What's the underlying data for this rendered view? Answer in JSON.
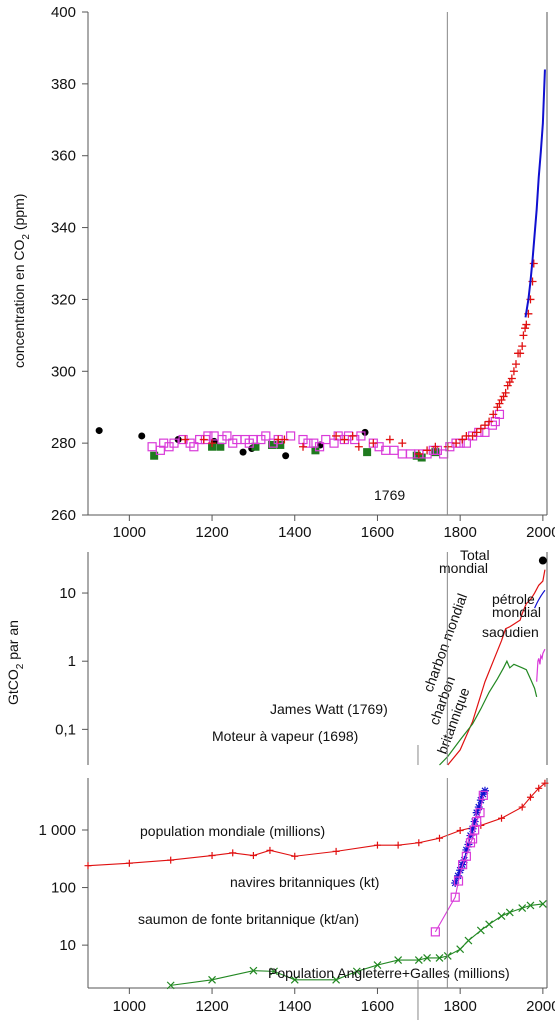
{
  "chart_data": [
    {
      "type": "scatter",
      "title": "",
      "xlabel": "",
      "ylabel": "concentration en CO2 (ppm)",
      "ylabel_main": "concentration en CO",
      "ylabel_sub": "2",
      "ylabel_unit": " (ppm)",
      "xlim": [
        900,
        2010
      ],
      "ylim": [
        260,
        400
      ],
      "x_ticks": [
        1000,
        1200,
        1400,
        1600,
        1800,
        2000
      ],
      "y_ticks": [
        260,
        280,
        300,
        320,
        340,
        360,
        380,
        400
      ],
      "x_tick_labels": [
        "1000",
        "1200",
        "1400",
        "1600",
        "1800",
        "2000"
      ],
      "y_tick_labels": [
        "260",
        "280",
        "300",
        "320",
        "340",
        "360",
        "380",
        "400"
      ],
      "annotation": {
        "x": 1769,
        "label": "1769"
      },
      "colors": {
        "magenta_squares": "#d93bd9",
        "green_squares": "#1e7a1e",
        "black_dots": "#000000",
        "red_plus": "#e01010",
        "blue_line": "#1010d0",
        "vline": "#888888"
      },
      "series": [
        {
          "marker": "black-dot",
          "color": "#000000",
          "x": [
            927,
            1030,
            1118,
            1205,
            1275,
            1296,
            1378,
            1462,
            1570
          ],
          "y": [
            283.5,
            282.0,
            281.0,
            280.5,
            277.5,
            278.5,
            276.5,
            279.5,
            283.0
          ]
        },
        {
          "marker": "green-square",
          "color": "#1e7a1e",
          "x": [
            1060,
            1200,
            1220,
            1305,
            1345,
            1365,
            1450,
            1575,
            1695,
            1707,
            1740
          ],
          "y": [
            276.5,
            279.0,
            279.0,
            279.0,
            279.5,
            279.5,
            278.0,
            277.5,
            276.5,
            276.0,
            277.5
          ]
        },
        {
          "marker": "magenta-square",
          "color": "#d93bd9",
          "x": [
            1055,
            1075,
            1083,
            1096,
            1108,
            1130,
            1147,
            1156,
            1170,
            1184,
            1190,
            1205,
            1224,
            1236,
            1250,
            1260,
            1280,
            1290,
            1300,
            1318,
            1330,
            1348,
            1360,
            1390,
            1420,
            1432,
            1446,
            1460,
            1475,
            1495,
            1505,
            1520,
            1530,
            1545,
            1560,
            1590,
            1604,
            1620,
            1640,
            1660,
            1680,
            1700,
            1720,
            1735,
            1745,
            1760,
            1775,
            1790,
            1800,
            1815,
            1830,
            1845,
            1860,
            1878,
            1885,
            1895
          ],
          "y": [
            279,
            278,
            280,
            279,
            280,
            281,
            280,
            279,
            281,
            281,
            282,
            282,
            281,
            282,
            280,
            281,
            281,
            280,
            281,
            281,
            282,
            280,
            281,
            282,
            281,
            280,
            280,
            279,
            281,
            280,
            282,
            281,
            282,
            281,
            282,
            280,
            279,
            278,
            278,
            277,
            277,
            277,
            277,
            278,
            278,
            277,
            279,
            280,
            280,
            280,
            282,
            283,
            283,
            285,
            286,
            288
          ]
        },
        {
          "marker": "red-plus",
          "color": "#e01010",
          "x": [
            1135,
            1180,
            1200,
            1360,
            1375,
            1420,
            1500,
            1520,
            1540,
            1555,
            1590,
            1630,
            1660,
            1700,
            1720,
            1740,
            1770,
            1790,
            1805,
            1815,
            1830,
            1840,
            1850,
            1860,
            1870,
            1880,
            1890,
            1895,
            1900,
            1905,
            1910,
            1915,
            1920,
            1925,
            1930,
            1935,
            1940,
            1945,
            1950,
            1953,
            1957,
            1960,
            1965,
            1970,
            1975,
            1978
          ],
          "y": [
            281,
            281,
            280,
            281,
            281,
            279,
            282,
            281,
            282,
            279,
            280,
            281,
            280,
            277,
            278,
            279,
            279,
            280,
            281,
            282,
            282,
            283,
            284,
            285,
            286,
            288,
            290,
            291,
            292,
            293,
            294,
            296,
            297,
            298,
            300,
            302,
            305,
            305,
            307,
            310,
            312,
            313,
            316,
            320,
            325,
            330
          ]
        },
        {
          "marker": "blue-line",
          "color": "#1010d0",
          "x": [
            1958,
            1965,
            1970,
            1975,
            1980,
            1985,
            1990,
            1995,
            2000,
            2005
          ],
          "y": [
            315,
            320,
            325,
            331,
            338,
            345,
            354,
            361,
            369,
            384
          ]
        }
      ]
    },
    {
      "type": "line",
      "title": "",
      "ylabel": "GtCO2 par an",
      "ylabel_main": "GtCO",
      "ylabel_sub": "2",
      "ylabel_unit": "  par an",
      "scale": "log",
      "ylim": [
        0.03,
        40
      ],
      "y_ticks": [
        0.1,
        1,
        10
      ],
      "y_tick_labels": [
        "0,1",
        "1",
        "10"
      ],
      "annotations": [
        "Total",
        "mondial",
        "charbon mondial",
        "pétrole",
        "mondial",
        "saoudien",
        "charbon",
        "britannique",
        "James Watt (1769)",
        "Moteur à vapeur (1698)"
      ],
      "series": [
        {
          "name": "charbon mondial",
          "color": "#e01010",
          "x": [
            1770,
            1800,
            1830,
            1860,
            1880,
            1900,
            1910,
            1920,
            1930,
            1945,
            1950,
            1960,
            1970,
            1980,
            1990,
            2000,
            2005
          ],
          "y": [
            0.03,
            0.05,
            0.13,
            0.5,
            1.0,
            2.0,
            3.0,
            3.2,
            3.5,
            4.0,
            5.0,
            7.0,
            8.0,
            10.0,
            13.0,
            15.0,
            22.0
          ]
        },
        {
          "name": "charbon britannique",
          "color": "#228822",
          "x": [
            1750,
            1770,
            1800,
            1830,
            1850,
            1870,
            1890,
            1905,
            1913,
            1920,
            1930,
            1940,
            1950,
            1960,
            1970,
            1980,
            1985
          ],
          "y": [
            0.03,
            0.04,
            0.07,
            0.12,
            0.2,
            0.35,
            0.55,
            0.8,
            1.0,
            0.8,
            0.9,
            0.85,
            0.8,
            0.75,
            0.55,
            0.4,
            0.3
          ]
        },
        {
          "name": "pétrole mondial",
          "color": "#1010d0",
          "x": [
            1980,
            1985,
            1990,
            1995,
            2000,
            2005
          ],
          "y": [
            6.0,
            7.0,
            8.0,
            9.0,
            10.0,
            11.0
          ]
        },
        {
          "name": "saoudien",
          "color": "#d93bd9",
          "x": [
            1985,
            1988,
            1990,
            1993,
            1995,
            1998,
            2000,
            2005
          ],
          "y": [
            0.5,
            1.0,
            1.1,
            0.9,
            1.2,
            1.1,
            1.3,
            1.5
          ]
        },
        {
          "name": "Total mondial",
          "color": "#000000",
          "x": [
            2000
          ],
          "y": [
            30
          ]
        }
      ]
    },
    {
      "type": "line",
      "title": "",
      "scale": "log",
      "xlim": [
        900,
        2010
      ],
      "ylim": [
        1.8,
        8000
      ],
      "y_ticks": [
        10,
        100,
        1000
      ],
      "y_tick_labels": [
        "10",
        "100",
        "1 000"
      ],
      "x_ticks": [
        1000,
        1200,
        1400,
        1600,
        1800,
        2000
      ],
      "x_tick_labels": [
        "1000",
        "1200",
        "1400",
        "1600",
        "1800",
        "2000"
      ],
      "series": [
        {
          "name": "population mondiale (millions)",
          "color": "#e01010",
          "x": [
            900,
            1000,
            1100,
            1200,
            1250,
            1300,
            1340,
            1400,
            1500,
            1600,
            1650,
            1700,
            1750,
            1800,
            1850,
            1900,
            1950,
            1970,
            1990,
            2005
          ],
          "y": [
            240,
            265,
            300,
            360,
            400,
            360,
            443,
            350,
            425,
            545,
            545,
            600,
            720,
            980,
            1200,
            1600,
            2500,
            3700,
            5300,
            6500
          ]
        },
        {
          "name": "navires britanniques (kt)",
          "color": "#1010d0",
          "x": [
            1788,
            1795,
            1800,
            1805,
            1810,
            1815,
            1820,
            1825,
            1830,
            1835,
            1840,
            1845,
            1850,
            1855,
            1860
          ],
          "y": [
            120,
            160,
            200,
            250,
            300,
            450,
            560,
            800,
            1050,
            1400,
            2000,
            2500,
            3300,
            4200,
            4800
          ]
        },
        {
          "name": "saumon de fonte britannique (kt/an)",
          "color": "#d93bd9",
          "x": [
            1740,
            1788,
            1796,
            1806,
            1815,
            1825,
            1830,
            1835,
            1840,
            1848,
            1856
          ],
          "y": [
            17,
            68,
            130,
            250,
            350,
            600,
            700,
            1000,
            1400,
            2000,
            4000
          ]
        },
        {
          "name": "Population Angleterre+Galles (millions)",
          "color": "#228822",
          "x": [
            1100,
            1200,
            1300,
            1350,
            1400,
            1500,
            1550,
            1600,
            1650,
            1700,
            1720,
            1750,
            1770,
            1800,
            1820,
            1850,
            1870,
            1900,
            1920,
            1950,
            1970,
            2000
          ],
          "y": [
            2.0,
            2.5,
            3.6,
            3.5,
            2.5,
            2.5,
            3.5,
            4.5,
            5.5,
            5.5,
            6.0,
            6.0,
            6.5,
            8.5,
            12,
            18,
            23,
            32,
            37,
            44,
            49,
            52
          ]
        }
      ],
      "annotations": [
        "population mondiale (millions)",
        "navires britanniques (kt)",
        "saumon de fonte britannique (kt/an)",
        "Population Angleterre+Galles (millions)"
      ]
    }
  ]
}
